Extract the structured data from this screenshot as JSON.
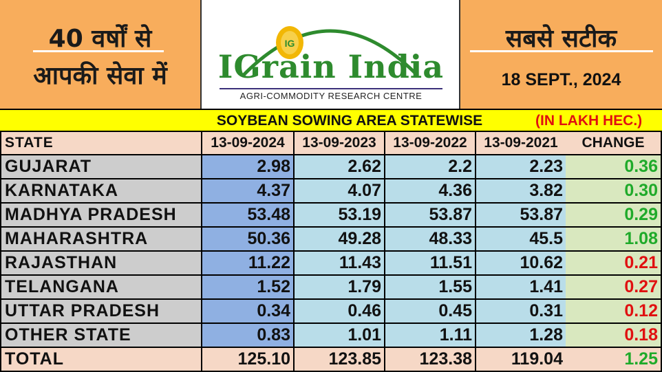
{
  "header": {
    "left_line1": "40 वर्षों से",
    "left_line2": "आपकी सेवा में",
    "right_line1": "सबसे सटीक",
    "date": "18 SEPT., 2024"
  },
  "logo": {
    "name": "IGrain India",
    "tagline": "AGRI-COMMODITY RESEARCH CENTRE",
    "badge": "IG",
    "colors": {
      "green": "#2e8b2e",
      "gold": "#f2b705",
      "navy": "#3a2f7a"
    }
  },
  "title": {
    "text": "SOYBEAN SOWING AREA STATEWISE",
    "unit": "(IN LAKH HEC.)"
  },
  "table": {
    "headers": [
      "STATE",
      "13-09-2024",
      "13-09-2023",
      "13-09-2022",
      "13-09-2021",
      "CHANGE"
    ],
    "rows": [
      {
        "state": "GUJARAT",
        "v2024": "2.98",
        "v2023": "2.62",
        "v2022": "2.2",
        "v2021": "2.23",
        "change": "0.36",
        "direction": "up"
      },
      {
        "state": "KARNATAKA",
        "v2024": "4.37",
        "v2023": "4.07",
        "v2022": "4.36",
        "v2021": "3.82",
        "change": "0.30",
        "direction": "up"
      },
      {
        "state": "MADHYA PRADESH",
        "v2024": "53.48",
        "v2023": "53.19",
        "v2022": "53.87",
        "v2021": "53.87",
        "change": "0.29",
        "direction": "up"
      },
      {
        "state": "MAHARASHTRA",
        "v2024": "50.36",
        "v2023": "49.28",
        "v2022": "48.33",
        "v2021": "45.5",
        "change": "1.08",
        "direction": "up"
      },
      {
        "state": "RAJASTHAN",
        "v2024": "11.22",
        "v2023": "11.43",
        "v2022": "11.51",
        "v2021": "10.62",
        "change": "0.21",
        "direction": "down"
      },
      {
        "state": "TELANGANA",
        "v2024": "1.52",
        "v2023": "1.79",
        "v2022": "1.55",
        "v2021": "1.41",
        "change": "0.27",
        "direction": "down"
      },
      {
        "state": "UTTAR PRADESH",
        "v2024": "0.34",
        "v2023": "0.46",
        "v2022": "0.45",
        "v2021": "0.31",
        "change": "0.12",
        "direction": "down"
      },
      {
        "state": "OTHER STATE",
        "v2024": "0.83",
        "v2023": "1.01",
        "v2022": "1.11",
        "v2021": "1.28",
        "change": "0.18",
        "direction": "down"
      }
    ],
    "total": {
      "state": "TOTAL",
      "v2024": "125.10",
      "v2023": "123.85",
      "v2022": "123.38",
      "v2021": "119.04",
      "change": "1.25",
      "direction": "up"
    },
    "colors": {
      "up": "#1faa2a",
      "down": "#e01010"
    }
  }
}
